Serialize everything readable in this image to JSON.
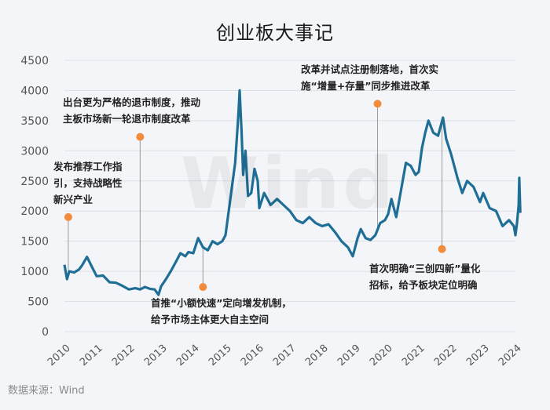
{
  "chart_data": {
    "type": "line",
    "title": "创业板大事记",
    "source": "数据来源：Wind",
    "watermark": "Wind",
    "color": "#1f6e96",
    "marker_color": "#f28c3a",
    "ylim": [
      0,
      4500
    ],
    "yticks": [
      "0",
      "500",
      "1000",
      "1500",
      "2000",
      "2500",
      "3000",
      "3500",
      "4000",
      "4500"
    ],
    "xlim": [
      2010,
      2024
    ],
    "xticks": [
      "2010",
      "2011",
      "2012",
      "2013",
      "2014",
      "2015",
      "2016",
      "2017",
      "2018",
      "2019",
      "2020",
      "2021",
      "2022",
      "2023",
      "2024"
    ],
    "series": [
      {
        "x": [
          2010.0,
          2010.08,
          2010.15,
          2010.3,
          2010.45,
          2010.55,
          2010.7,
          2010.85,
          2011.0,
          2011.2,
          2011.4,
          2011.6,
          2011.8,
          2012.0,
          2012.2,
          2012.35,
          2012.5,
          2012.65,
          2012.8,
          2012.92,
          2013.0,
          2013.15,
          2013.3,
          2013.45,
          2013.6,
          2013.75,
          2013.85,
          2014.0,
          2014.15,
          2014.3,
          2014.45,
          2014.6,
          2014.75,
          2014.9,
          2015.0,
          2015.1,
          2015.2,
          2015.3,
          2015.4,
          2015.44,
          2015.5,
          2015.55,
          2015.62,
          2015.7,
          2015.8,
          2015.9,
          2016.0,
          2016.05,
          2016.2,
          2016.4,
          2016.6,
          2016.8,
          2017.0,
          2017.2,
          2017.4,
          2017.6,
          2017.8,
          2018.0,
          2018.2,
          2018.4,
          2018.6,
          2018.8,
          2018.95,
          2019.1,
          2019.2,
          2019.35,
          2019.5,
          2019.65,
          2019.8,
          2019.95,
          2020.05,
          2020.15,
          2020.3,
          2020.5,
          2020.6,
          2020.75,
          2020.9,
          2021.0,
          2021.1,
          2021.2,
          2021.3,
          2021.45,
          2021.6,
          2021.75,
          2021.85,
          2022.0,
          2022.2,
          2022.35,
          2022.5,
          2022.7,
          2022.9,
          2023.0,
          2023.2,
          2023.4,
          2023.6,
          2023.8,
          2023.95,
          2024.0,
          2024.05,
          2024.1,
          2024.12,
          2024.15
        ],
        "y": [
          1110,
          870,
          1000,
          980,
          1030,
          1100,
          1240,
          1080,
          920,
          930,
          820,
          810,
          760,
          700,
          720,
          700,
          740,
          710,
          700,
          610,
          750,
          870,
          1000,
          1150,
          1300,
          1250,
          1320,
          1300,
          1550,
          1400,
          1350,
          1500,
          1450,
          1500,
          1600,
          2000,
          2400,
          2800,
          3600,
          4000,
          3300,
          2600,
          3000,
          2250,
          2300,
          2700,
          2500,
          2050,
          2300,
          2100,
          2200,
          2100,
          2000,
          1850,
          1800,
          1900,
          1800,
          1750,
          1780,
          1650,
          1500,
          1400,
          1250,
          1550,
          1700,
          1550,
          1520,
          1600,
          1800,
          1850,
          1950,
          2200,
          1900,
          2500,
          2800,
          2750,
          2600,
          2650,
          3050,
          3300,
          3500,
          3300,
          3250,
          3550,
          3200,
          2950,
          2550,
          2300,
          2500,
          2400,
          2150,
          2300,
          2050,
          2000,
          1750,
          1850,
          1750,
          1600,
          1800,
          2100,
          2550,
          1970
        ]
      }
    ],
    "annotations": [
      {
        "lines": [
          "发布推荐工作指",
          "引，支持战略性",
          "新兴产业"
        ],
        "x": 2010.12,
        "y": 1900
      },
      {
        "lines": [
          "出台更为严格的退市制度，推动",
          "主板市场新一轮退市制度改革"
        ],
        "x": 2012.35,
        "y": 3230
      },
      {
        "lines": [
          "首推“小额快速”定向增发机制，",
          "给予市场主体更大自主空间"
        ],
        "x": 2014.3,
        "y": 740
      },
      {
        "lines": [
          "改革并试点注册制落地，首次实",
          "施“增量+存量”同步推进改革"
        ],
        "x": 2019.72,
        "y": 3780
      },
      {
        "lines": [
          "首次明确“三创四新”量化",
          "招标，给予板块定位明确"
        ],
        "x": 2021.72,
        "y": 1370
      }
    ]
  }
}
